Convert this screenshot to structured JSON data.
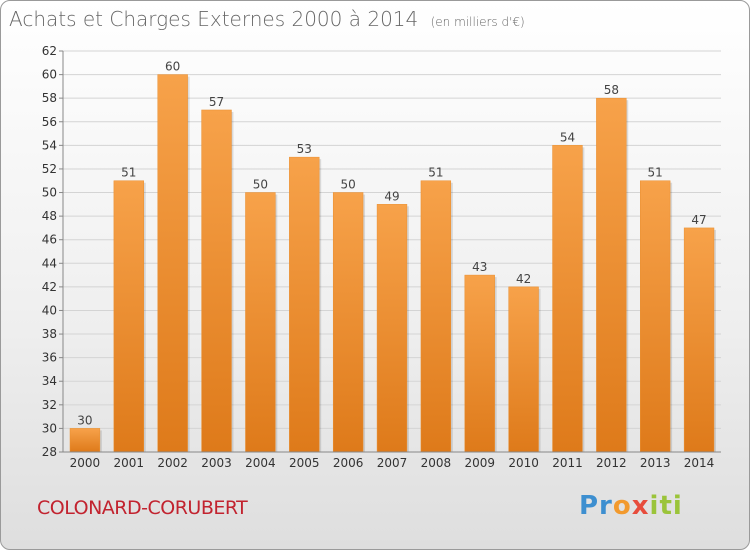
{
  "header": {
    "title": "Achats et Charges Externes 2000 à 2014",
    "unit": "(en milliers d'€)"
  },
  "footer": {
    "commune": "COLONARD-CORUBERT",
    "logo": "Proxiti"
  },
  "colors": {
    "bar_top": "#f7a24a",
    "bar_bottom": "#de7a1a",
    "commune": "#c2232f"
  },
  "chart_data": {
    "type": "bar",
    "title": "Achats et Charges Externes 2000 à 2014",
    "subtitle": "(en milliers d'€)",
    "categories": [
      "2000",
      "2001",
      "2002",
      "2003",
      "2004",
      "2005",
      "2006",
      "2007",
      "2008",
      "2009",
      "2010",
      "2011",
      "2012",
      "2013",
      "2014"
    ],
    "values": [
      30,
      51,
      60,
      57,
      50,
      53,
      50,
      49,
      51,
      43,
      42,
      54,
      58,
      51,
      47
    ],
    "ylim": [
      28,
      62
    ],
    "yticks": [
      28,
      30,
      32,
      34,
      36,
      38,
      40,
      42,
      44,
      46,
      48,
      50,
      52,
      54,
      56,
      58,
      60,
      62
    ],
    "grid": true,
    "legend": "none"
  }
}
